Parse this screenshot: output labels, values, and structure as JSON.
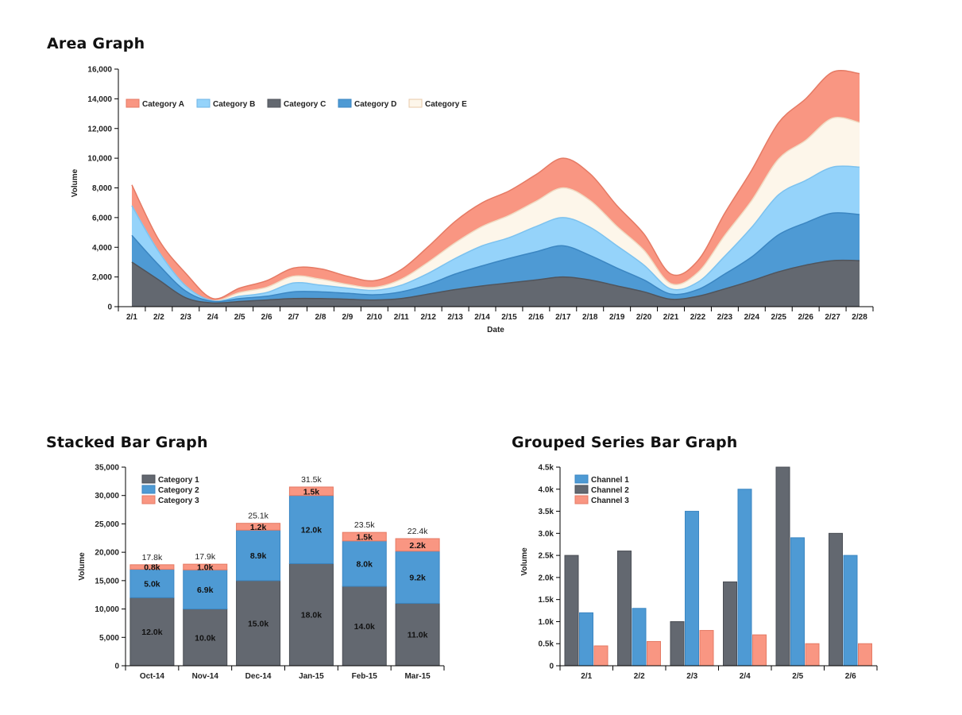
{
  "titles": {
    "area": "Area Graph",
    "stacked": "Stacked Bar Graph",
    "grouped": "Grouped Series Bar Graph"
  },
  "chart_data": [
    {
      "type": "area",
      "title": "Area Graph",
      "xlabel": "Date",
      "ylabel": "Volume",
      "ylim": [
        0,
        16000
      ],
      "yticks": [
        0,
        2000,
        4000,
        6000,
        8000,
        10000,
        12000,
        14000,
        16000
      ],
      "ytick_labels": [
        "0",
        "2,000",
        "4,000",
        "6,000",
        "8,000",
        "10,000",
        "12,000",
        "14,000",
        "16,000"
      ],
      "legend_position": "top-left",
      "x": [
        "2/1",
        "2/2",
        "2/3",
        "2/4",
        "2/5",
        "2/6",
        "2/7",
        "2/8",
        "2/9",
        "2/10",
        "2/11",
        "2/12",
        "2/13",
        "2/14",
        "2/15",
        "2/16",
        "2/17",
        "2/18",
        "2/19",
        "2/20",
        "2/21",
        "2/22",
        "2/23",
        "2/24",
        "2/25",
        "2/26",
        "2/27",
        "2/28"
      ],
      "series": [
        {
          "name": "Category C",
          "color": "#636870",
          "values": [
            3000,
            1800,
            600,
            250,
            350,
            450,
            550,
            550,
            500,
            450,
            550,
            850,
            1150,
            1400,
            1600,
            1800,
            2000,
            1800,
            1400,
            1000,
            500,
            700,
            1200,
            1750,
            2350,
            2800,
            3100,
            3100
          ]
        },
        {
          "name": "Category D",
          "color": "#4e9ad4",
          "values": [
            1800,
            1000,
            450,
            100,
            200,
            250,
            450,
            450,
            400,
            350,
            450,
            650,
            1050,
            1350,
            1650,
            1900,
            2100,
            1650,
            1200,
            800,
            350,
            450,
            1000,
            1600,
            2500,
            2850,
            3200,
            3100
          ]
        },
        {
          "name": "Category B",
          "color": "#95d3fa",
          "values": [
            2000,
            900,
            350,
            50,
            150,
            250,
            600,
            450,
            350,
            300,
            450,
            750,
            1050,
            1350,
            1400,
            1700,
            1900,
            1900,
            1500,
            1000,
            350,
            500,
            1200,
            2000,
            2700,
            2850,
            3100,
            3200
          ]
        },
        {
          "name": "Category E",
          "color": "#fdf6ea",
          "values": [
            0,
            0,
            0,
            0,
            250,
            350,
            450,
            400,
            250,
            200,
            400,
            750,
            1050,
            1300,
            1500,
            1700,
            2000,
            1800,
            1300,
            1000,
            350,
            650,
            1400,
            1800,
            2400,
            2700,
            3300,
            3000
          ]
        },
        {
          "name": "Category A",
          "color": "#f99682",
          "values": [
            1400,
            800,
            850,
            150,
            300,
            450,
            550,
            700,
            550,
            450,
            650,
            1050,
            1450,
            1600,
            1650,
            1800,
            2000,
            1800,
            1400,
            1100,
            650,
            800,
            1500,
            2050,
            2450,
            2800,
            3100,
            3300
          ]
        }
      ],
      "legend_order": [
        "Category A",
        "Category B",
        "Category C",
        "Category D",
        "Category E"
      ]
    },
    {
      "type": "stacked-bar",
      "title": "Stacked Bar Graph",
      "ylabel": "Volume",
      "ylim": [
        0,
        35000
      ],
      "yticks": [
        0,
        5000,
        10000,
        15000,
        20000,
        25000,
        30000,
        35000
      ],
      "ytick_labels": [
        "0",
        "5,000",
        "10,000",
        "15,000",
        "20,000",
        "25,000",
        "30,000",
        "35,000"
      ],
      "legend_position": "top-left",
      "categories": [
        "Oct-14",
        "Nov-14",
        "Dec-14",
        "Jan-15",
        "Feb-15",
        "Mar-15"
      ],
      "series": [
        {
          "name": "Category 1",
          "color": "#636870",
          "values": [
            12000,
            10000,
            15000,
            18000,
            14000,
            11000
          ],
          "labels": [
            "12.0k",
            "10.0k",
            "15.0k",
            "18.0k",
            "14.0k",
            "11.0k"
          ]
        },
        {
          "name": "Category 2",
          "color": "#4e9ad4",
          "values": [
            5000,
            6900,
            8900,
            12000,
            8000,
            9200
          ],
          "labels": [
            "5.0k",
            "6.9k",
            "8.9k",
            "12.0k",
            "8.0k",
            "9.2k"
          ]
        },
        {
          "name": "Category 3",
          "color": "#f99682",
          "values": [
            800,
            1000,
            1200,
            1500,
            1500,
            2200
          ],
          "labels": [
            "0.8k",
            "1.0k",
            "1.2k",
            "1.5k",
            "1.5k",
            "2.2k"
          ]
        }
      ],
      "totals": [
        "17.8k",
        "17.9k",
        "25.1k",
        "31.5k",
        "23.5k",
        "22.4k"
      ]
    },
    {
      "type": "grouped-bar",
      "title": "Grouped Series Bar Graph",
      "ylabel": "Volume",
      "ylim": [
        0,
        4500
      ],
      "yticks": [
        0,
        500,
        1000,
        1500,
        2000,
        2500,
        3000,
        3500,
        4000,
        4500
      ],
      "ytick_labels": [
        "0",
        "0.5k",
        "1.0k",
        "1.5k",
        "2.0k",
        "2.5k",
        "3.0k",
        "3.5k",
        "4.0k",
        "4.5k"
      ],
      "legend_position": "top-left",
      "categories": [
        "2/1",
        "2/2",
        "2/3",
        "2/4",
        "2/5",
        "2/6"
      ],
      "bar_order": [
        "Channel 2",
        "Channel 1",
        "Channel 3"
      ],
      "series": [
        {
          "name": "Channel 1",
          "color": "#4e9ad4",
          "values": [
            1200,
            1300,
            3500,
            4000,
            2900,
            2500
          ]
        },
        {
          "name": "Channel 2",
          "color": "#636870",
          "values": [
            2500,
            2600,
            1000,
            1900,
            4500,
            3000
          ]
        },
        {
          "name": "Channel 3",
          "color": "#f99682",
          "values": [
            450,
            550,
            800,
            700,
            500,
            500
          ]
        }
      ]
    }
  ]
}
